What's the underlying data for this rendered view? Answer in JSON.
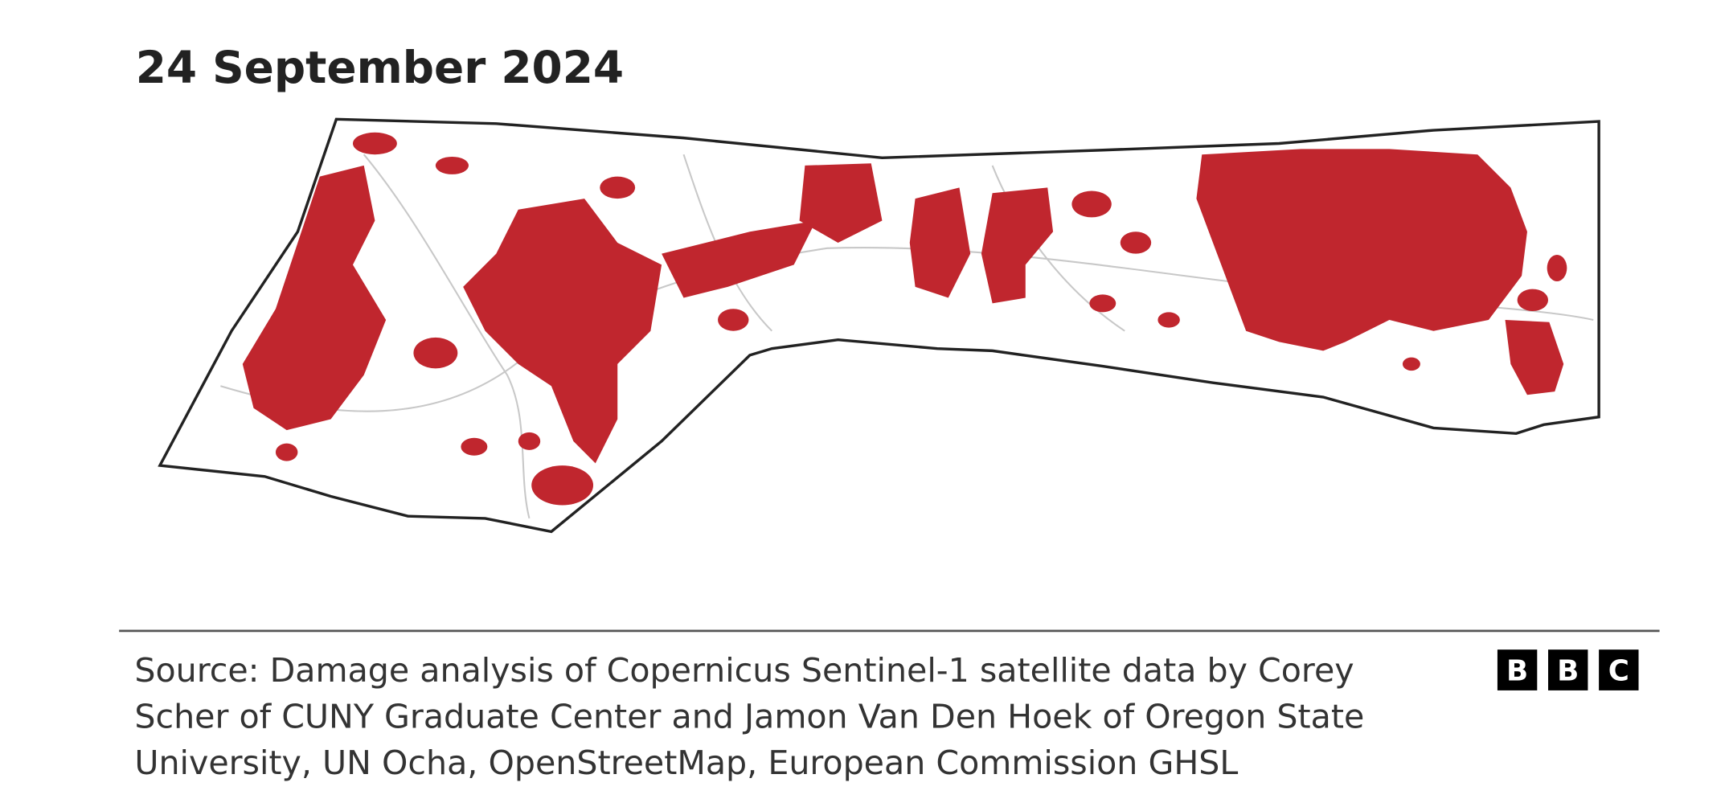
{
  "header": {
    "title": "24 September 2024"
  },
  "source": {
    "lines": [
      "Source: Damage analysis of Copernicus Sentinel-1 satellite data by Corey",
      "Scher of CUNY Graduate Center and Jamon Van Den Hoek of Oregon State",
      "University, UN Ocha, OpenStreetMap, European Commission GHSL"
    ]
  },
  "logo": {
    "letters": [
      "B",
      "B",
      "C"
    ]
  }
}
